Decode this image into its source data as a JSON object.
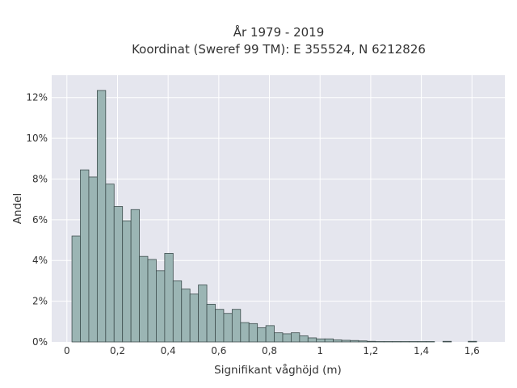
{
  "chart_data": {
    "type": "bar",
    "title": "År 1979 - 2019",
    "subtitle": "Koordinat (Sweref 99 TM): E 355524, N 6212826",
    "xlabel": "Signifikant våghöjd (m)",
    "ylabel": "Andel",
    "xlim": [
      -0.06,
      1.73
    ],
    "ylim": [
      0,
      13.1
    ],
    "x_ticks": [
      0,
      0.2,
      0.4,
      0.6,
      0.8,
      1,
      1.2,
      1.4,
      1.6
    ],
    "x_tick_labels": [
      "0",
      "0,2",
      "0,4",
      "0,6",
      "0,8",
      "1",
      "1,2",
      "1,4",
      "1,6"
    ],
    "y_ticks": [
      0,
      2,
      4,
      6,
      8,
      10,
      12
    ],
    "y_tick_labels": [
      "0%",
      "2%",
      "4%",
      "6%",
      "8%",
      "10%",
      "12%"
    ],
    "bin_start": 0.02,
    "bin_width": 0.0333,
    "values": [
      5.2,
      8.45,
      8.1,
      12.35,
      7.75,
      6.65,
      5.95,
      6.5,
      4.2,
      4.05,
      3.5,
      4.35,
      3.0,
      2.6,
      2.35,
      2.8,
      1.85,
      1.6,
      1.4,
      1.6,
      0.95,
      0.9,
      0.7,
      0.8,
      0.45,
      0.4,
      0.45,
      0.3,
      0.2,
      0.15,
      0.15,
      0.1,
      0.08,
      0.07,
      0.05,
      0.03,
      0.02,
      0.02,
      0.02,
      0.02,
      0.02,
      0.02,
      0.02,
      0,
      0.03,
      0,
      0,
      0.03,
      0
    ],
    "grid": true,
    "colors": {
      "plot_background": "#e5e6ee",
      "grid": "#ffffff",
      "bar_fill": "#9bb5b4",
      "bar_stroke": "#3f4f4f"
    }
  }
}
